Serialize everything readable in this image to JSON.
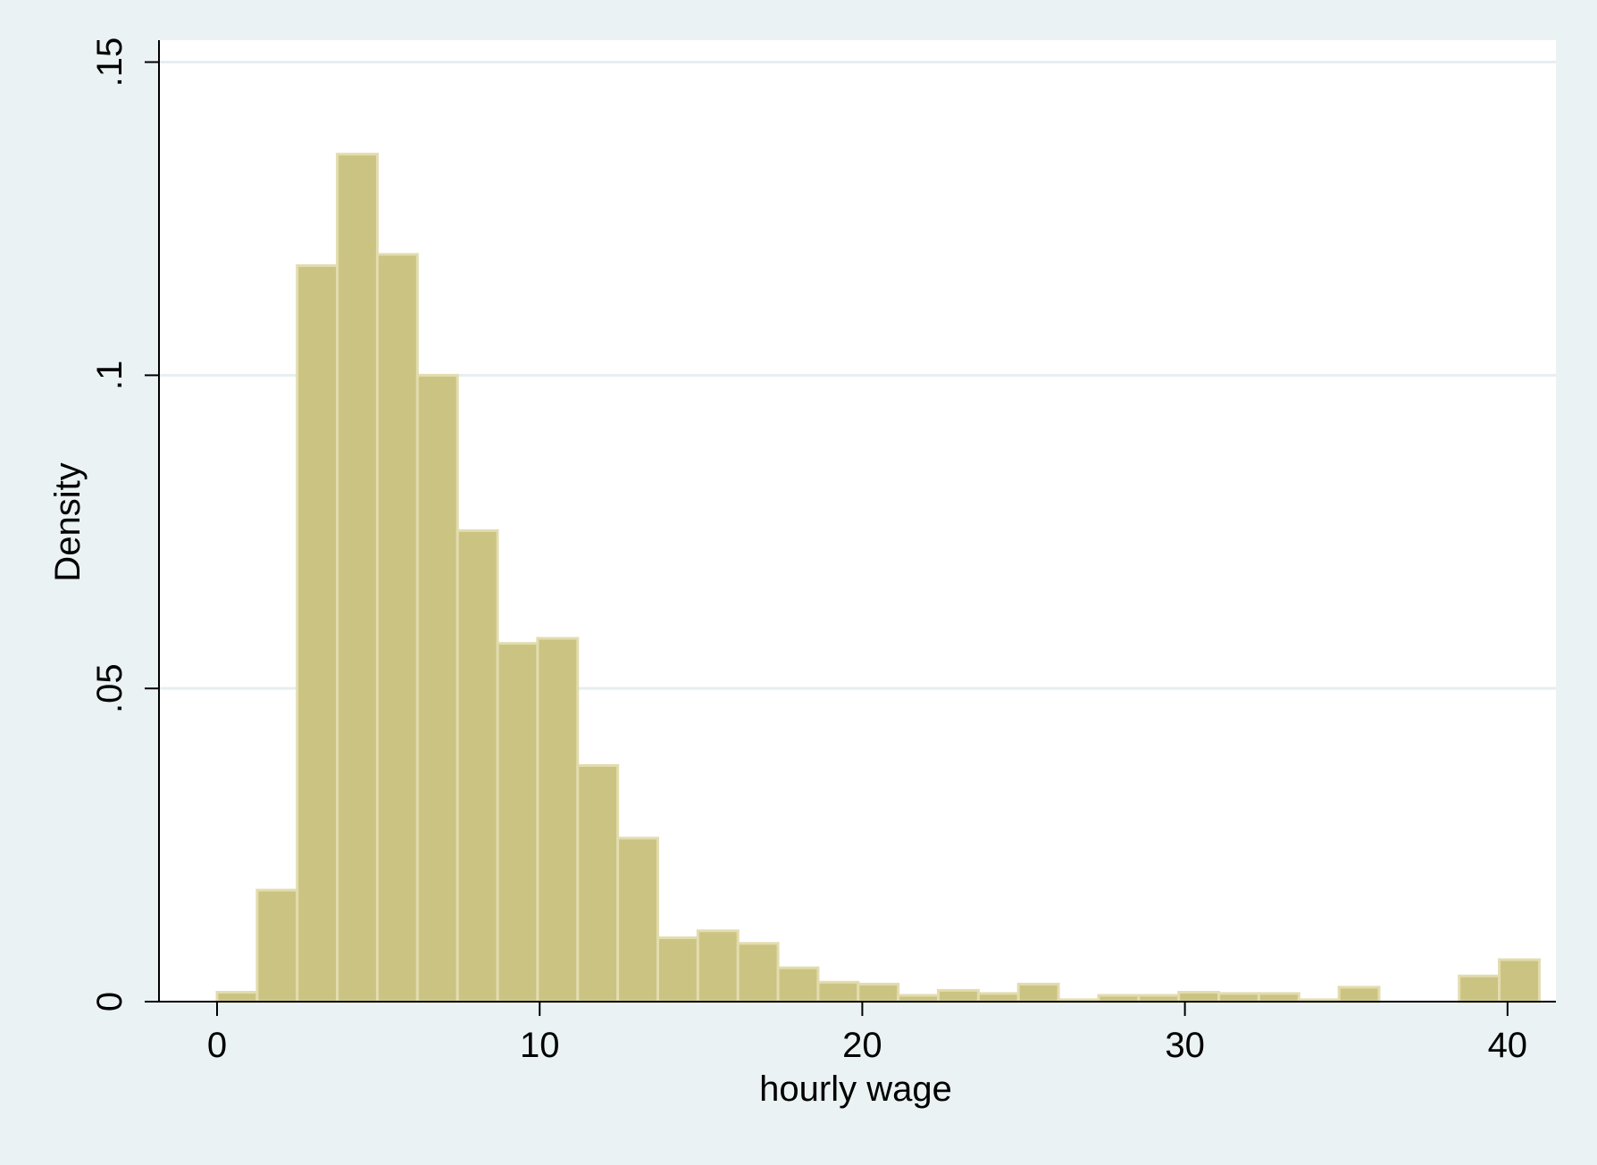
{
  "colors": {
    "outer_background": "#eaf2f3",
    "plot_background": "#ffffff",
    "bar_fill": "#cbc382",
    "bar_stroke": "#e2dcae",
    "gridline": "#e6eef0",
    "axis": "#000000"
  },
  "chart_data": {
    "type": "bar",
    "subtype": "histogram",
    "title": "",
    "xlabel": "hourly wage",
    "ylabel": "Density",
    "xlim": [
      -1.8,
      41.5
    ],
    "ylim": [
      0,
      0.1535
    ],
    "grid": "horizontal",
    "x_ticks": [
      0,
      10,
      20,
      30,
      40
    ],
    "x_tick_labels": [
      "0",
      "10",
      "20",
      "30",
      "40"
    ],
    "y_ticks": [
      0,
      0.05,
      0.1,
      0.15
    ],
    "y_tick_labels": [
      "0",
      ".05",
      ".1",
      ".15"
    ],
    "bin_start": 0.0,
    "bin_width": 1.242,
    "values": [
      0.0015,
      0.0178,
      0.1175,
      0.1353,
      0.1193,
      0.1,
      0.0752,
      0.0572,
      0.058,
      0.0377,
      0.0261,
      0.0102,
      0.0113,
      0.0093,
      0.0054,
      0.0031,
      0.0028,
      0.001,
      0.0018,
      0.0013,
      0.0028,
      0.0003,
      0.001,
      0.001,
      0.0015,
      0.0013,
      0.0013,
      0.0003,
      0.0023,
      0.0,
      0.0,
      0.0041,
      0.0067
    ]
  }
}
